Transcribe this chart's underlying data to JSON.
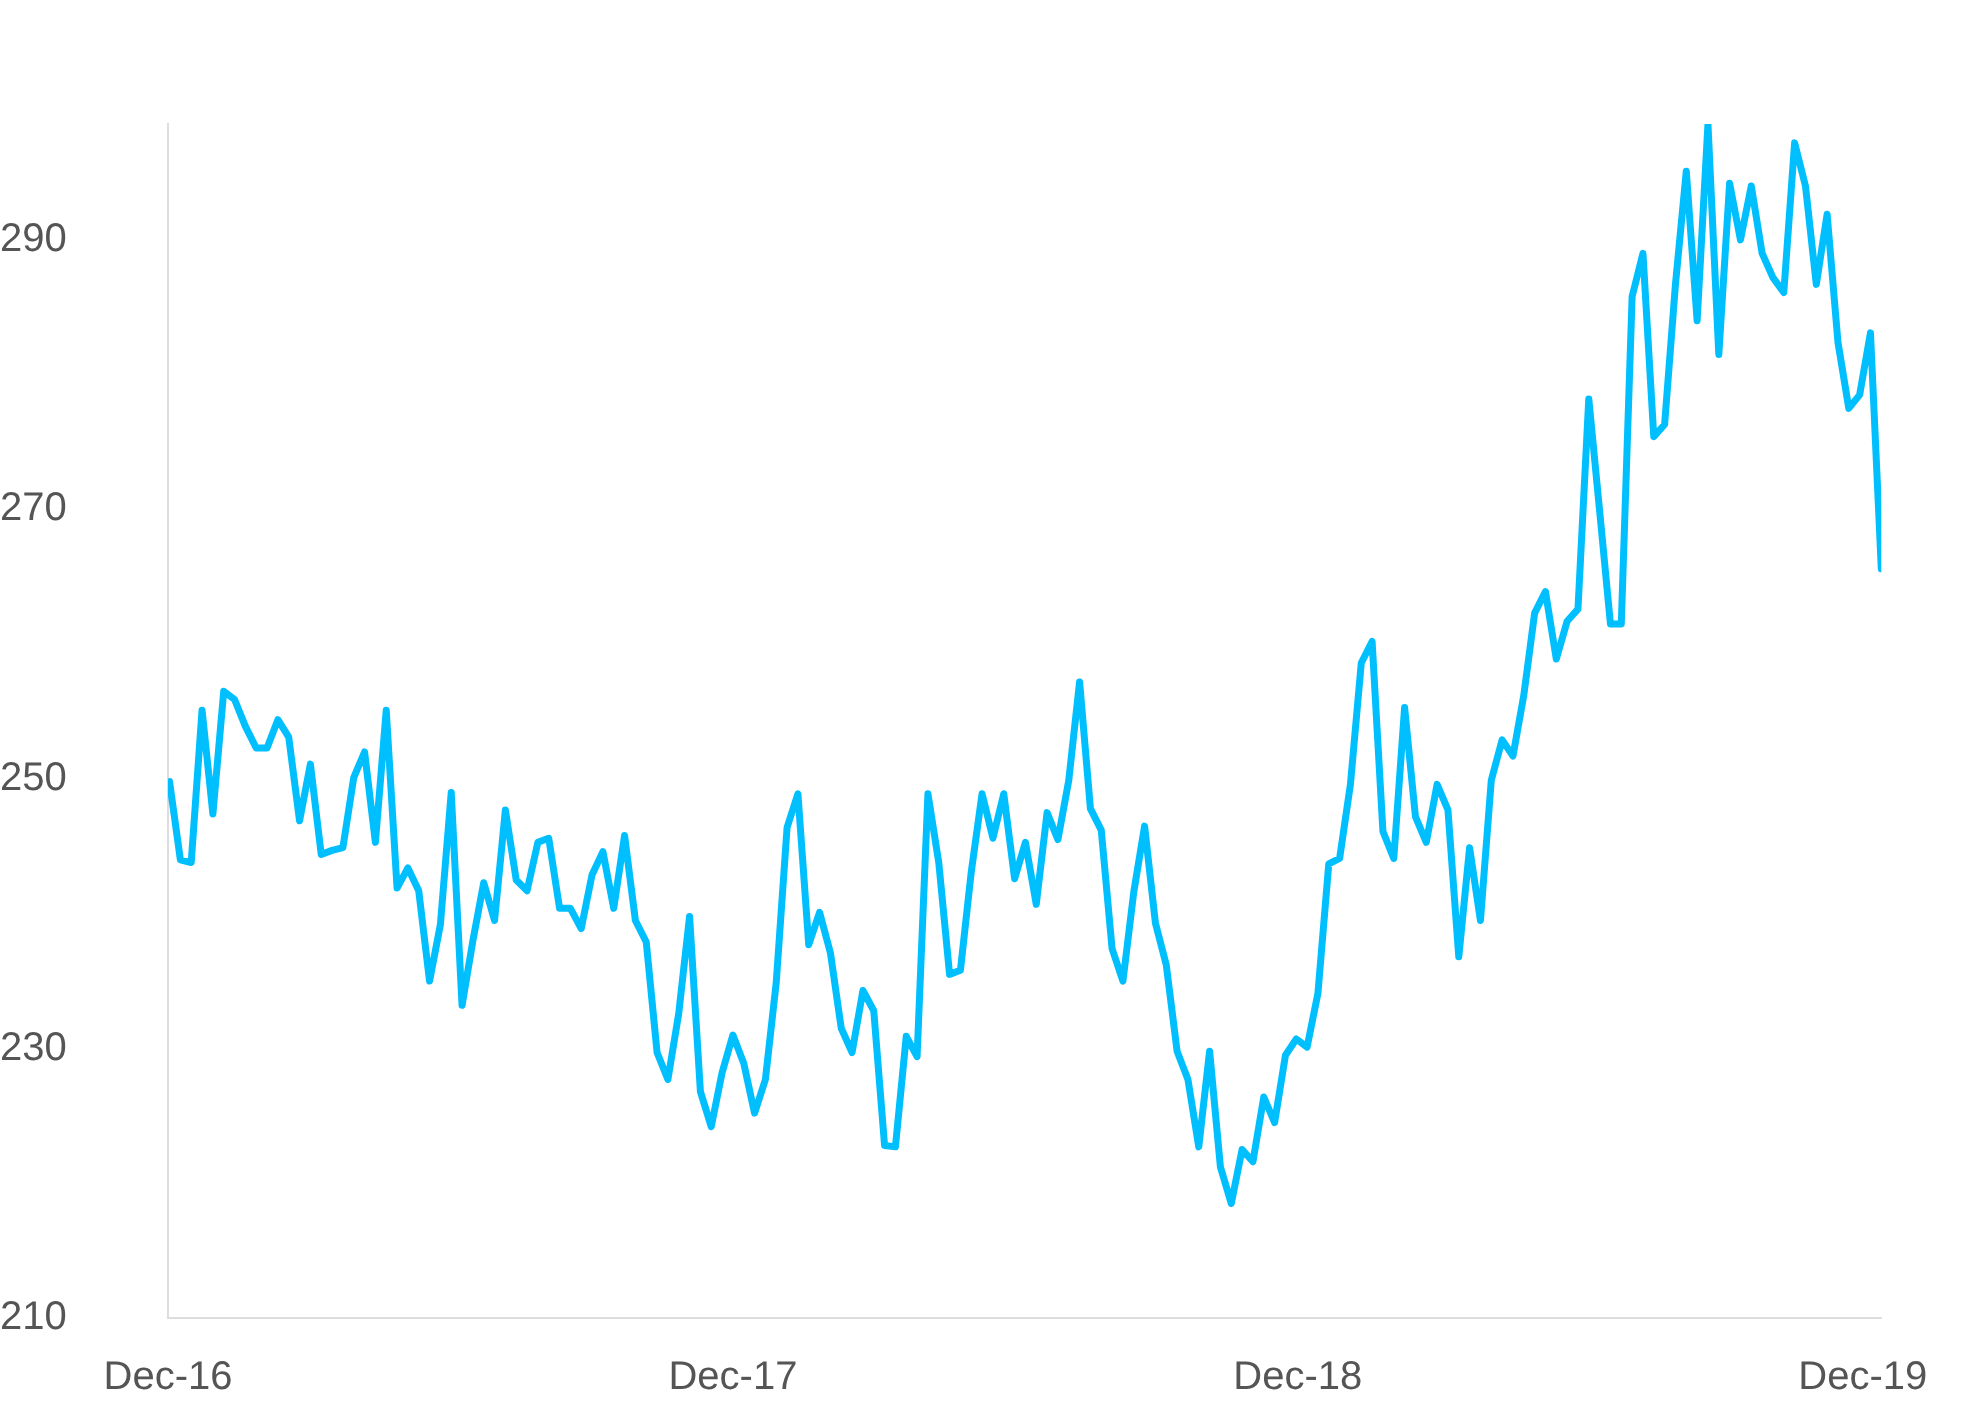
{
  "chart_data": {
    "type": "line",
    "x": [
      "2016-12-02",
      "2016-12-09",
      "2016-12-16",
      "2016-12-23",
      "2016-12-30",
      "2017-01-06",
      "2017-01-13",
      "2017-01-20",
      "2017-01-27",
      "2017-02-03",
      "2017-02-10",
      "2017-02-17",
      "2017-02-24",
      "2017-03-03",
      "2017-03-10",
      "2017-03-17",
      "2017-03-24",
      "2017-03-31",
      "2017-04-07",
      "2017-04-14",
      "2017-04-21",
      "2017-04-28",
      "2017-05-05",
      "2017-05-12",
      "2017-05-19",
      "2017-05-26",
      "2017-06-02",
      "2017-06-09",
      "2017-06-16",
      "2017-06-23",
      "2017-06-30",
      "2017-07-07",
      "2017-07-14",
      "2017-07-21",
      "2017-07-28",
      "2017-08-04",
      "2017-08-11",
      "2017-08-18",
      "2017-08-25",
      "2017-09-01",
      "2017-09-08",
      "2017-09-15",
      "2017-09-22",
      "2017-09-29",
      "2017-10-06",
      "2017-10-13",
      "2017-10-20",
      "2017-10-27",
      "2017-11-03",
      "2017-11-10",
      "2017-11-17",
      "2017-11-24",
      "2017-12-01",
      "2017-12-08",
      "2017-12-15",
      "2017-12-22",
      "2017-12-29",
      "2018-01-05",
      "2018-01-12",
      "2018-01-19",
      "2018-01-26",
      "2018-02-02",
      "2018-02-09",
      "2018-02-16",
      "2018-02-23",
      "2018-03-02",
      "2018-03-09",
      "2018-03-16",
      "2018-03-23",
      "2018-03-30",
      "2018-04-06",
      "2018-04-13",
      "2018-04-20",
      "2018-04-27",
      "2018-05-04",
      "2018-05-11",
      "2018-05-18",
      "2018-05-25",
      "2018-06-01",
      "2018-06-08",
      "2018-06-15",
      "2018-06-22",
      "2018-06-29",
      "2018-07-06",
      "2018-07-13",
      "2018-07-20",
      "2018-07-27",
      "2018-08-03",
      "2018-08-10",
      "2018-08-17",
      "2018-08-24",
      "2018-08-31",
      "2018-09-07",
      "2018-09-14",
      "2018-09-21",
      "2018-09-28",
      "2018-10-05",
      "2018-10-12",
      "2018-10-19",
      "2018-10-26",
      "2018-11-02",
      "2018-11-09",
      "2018-11-16",
      "2018-11-23",
      "2018-11-30",
      "2018-12-07",
      "2018-12-14",
      "2018-12-21",
      "2018-12-28",
      "2019-01-04",
      "2019-01-11",
      "2019-01-18",
      "2019-01-25",
      "2019-02-01",
      "2019-02-08",
      "2019-02-15",
      "2019-02-22",
      "2019-03-01",
      "2019-03-08",
      "2019-03-15",
      "2019-03-22",
      "2019-03-29",
      "2019-04-05",
      "2019-04-12",
      "2019-04-19",
      "2019-04-26",
      "2019-05-03",
      "2019-05-10",
      "2019-05-17",
      "2019-05-24",
      "2019-05-31",
      "2019-06-07",
      "2019-06-14",
      "2019-06-21",
      "2019-06-28",
      "2019-07-05",
      "2019-07-12",
      "2019-07-19",
      "2019-07-26",
      "2019-08-02",
      "2019-08-09",
      "2019-08-16",
      "2019-08-23",
      "2019-08-30",
      "2019-09-06",
      "2019-09-13",
      "2019-09-20",
      "2019-09-27",
      "2019-10-04",
      "2019-10-11",
      "2019-10-18",
      "2019-10-25",
      "2019-11-01",
      "2019-11-08",
      "2019-11-15",
      "2019-11-22",
      "2019-11-29",
      "2019-12-06",
      "2019-12-13"
    ],
    "series": [
      {
        "color": "#00bfff",
        "values": [
          249.8,
          244.0,
          243.8,
          255.1,
          247.4,
          256.5,
          255.9,
          253.9,
          252.3,
          252.3,
          254.4,
          253.1,
          246.9,
          251.1,
          244.4,
          244.7,
          244.9,
          250.1,
          252.0,
          245.3,
          255.1,
          241.9,
          243.4,
          241.7,
          235.0,
          239.2,
          249.0,
          233.2,
          238.0,
          242.3,
          239.5,
          247.7,
          242.5,
          241.7,
          245.3,
          245.6,
          240.4,
          240.4,
          238.9,
          242.9,
          244.6,
          240.4,
          245.8,
          239.5,
          237.9,
          229.7,
          227.7,
          232.6,
          239.8,
          226.8,
          224.2,
          228.2,
          231.0,
          228.9,
          225.2,
          227.7,
          234.9,
          246.4,
          248.9,
          237.7,
          240.1,
          237.1,
          231.5,
          229.7,
          234.3,
          232.8,
          222.8,
          222.7,
          230.9,
          229.4,
          248.9,
          243.8,
          235.5,
          235.8,
          243.1,
          248.9,
          245.6,
          248.9,
          242.6,
          245.3,
          240.7,
          247.5,
          245.5,
          249.9,
          257.2,
          247.8,
          246.2,
          237.4,
          235.0,
          241.6,
          246.5,
          239.3,
          236.2,
          229.8,
          227.7,
          222.7,
          229.8,
          221.2,
          218.5,
          222.5,
          221.6,
          226.4,
          224.5,
          229.5,
          230.7,
          230.1,
          234.1,
          243.7,
          244.1,
          249.6,
          258.6,
          260.2,
          246.1,
          244.1,
          255.3,
          247.2,
          245.3,
          249.6,
          247.7,
          236.8,
          244.9,
          239.5,
          249.9,
          252.9,
          251.7,
          256.2,
          262.3,
          263.9,
          258.9,
          261.7,
          262.6,
          278.2,
          269.9,
          261.5,
          261.5,
          285.8,
          289.0,
          275.4,
          276.3,
          286.7,
          295.1,
          284.0,
          298.6,
          281.5,
          294.2,
          290.0,
          294.0,
          289.0,
          287.2,
          286.1,
          297.2,
          294.0,
          286.7,
          291.9,
          282.4,
          277.5,
          278.5,
          283.1,
          265.6
        ]
      }
    ],
    "xlim": [
      "2016-12",
      "2019-12-13"
    ],
    "xticks": [
      {
        "value": "2016-12",
        "label": "Dec-16"
      },
      {
        "value": "2017-12",
        "label": "Dec-17"
      },
      {
        "value": "2018-12",
        "label": "Dec-18"
      },
      {
        "value": "2019-12",
        "label": "Dec-19"
      }
    ],
    "ylim": [
      210,
      298.6
    ],
    "yticks": [
      210,
      230,
      250,
      270,
      290
    ],
    "grid": false,
    "legend": false,
    "marker": "none",
    "line_style": "solid"
  }
}
